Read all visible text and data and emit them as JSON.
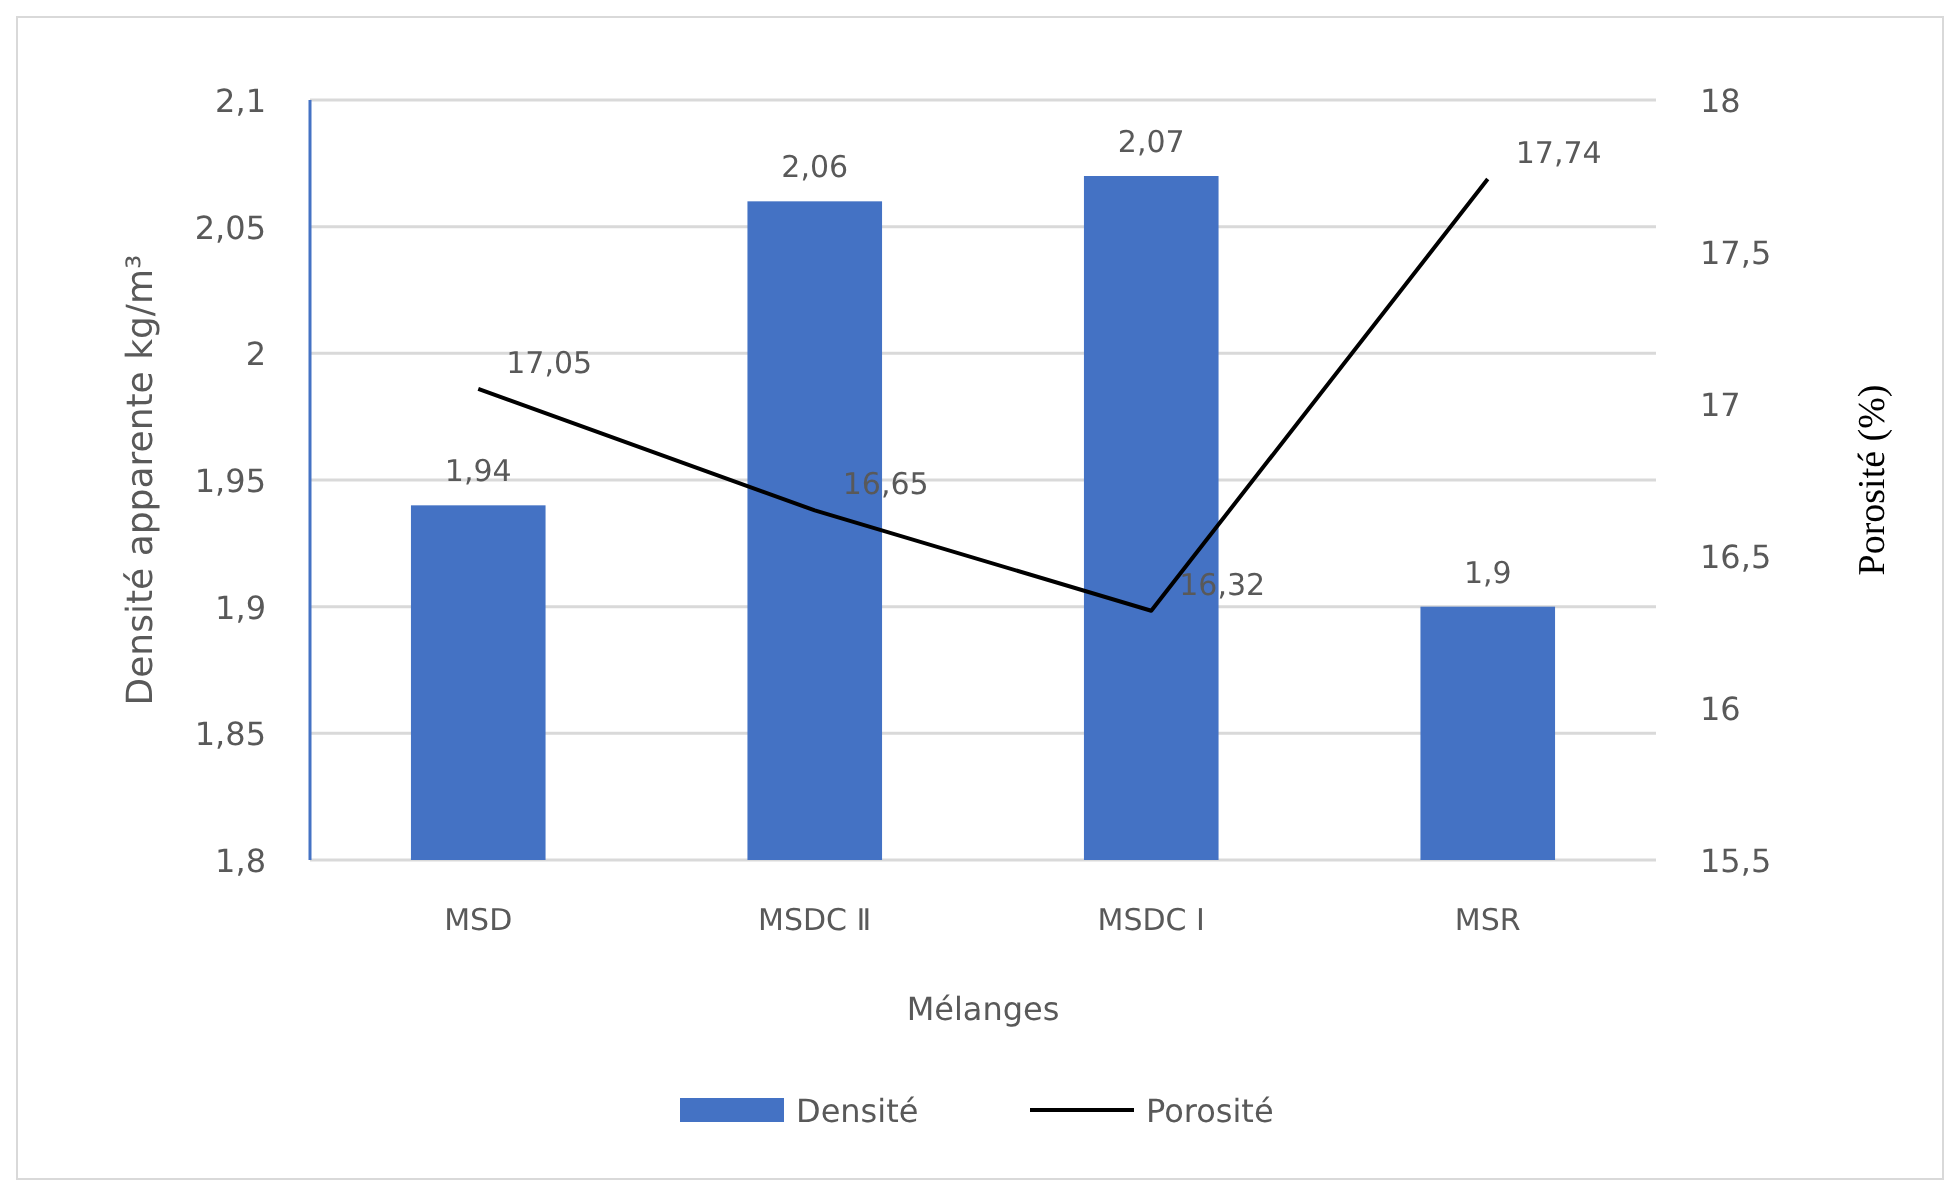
{
  "chart_data": {
    "type": "bar",
    "xlabel": "Mélanges",
    "ylabel": "Densité apparente kg/m³",
    "y2label": "Porosité (%)",
    "categories": [
      "MSD",
      "MSDC Ⅱ",
      "MSDC Ⅰ",
      "MSR"
    ],
    "series": [
      {
        "name": "Densité",
        "color": "#4472c4",
        "values": [
          1.94,
          2.06,
          2.07,
          1.9
        ],
        "value_labels": [
          "1,94",
          "2,06",
          "2,07",
          "1,9"
        ]
      },
      {
        "name": "Porosité",
        "type": "line",
        "axis": "y2",
        "color": "#000000",
        "values": [
          17.05,
          16.65,
          16.32,
          17.74
        ],
        "value_labels": [
          "17,05",
          "16,65",
          "16,32",
          "17,74"
        ]
      }
    ],
    "ylim": [
      1.8,
      2.1
    ],
    "yticks": [
      {
        "value": 1.8,
        "label": "1,8"
      },
      {
        "value": 1.85,
        "label": "1,85"
      },
      {
        "value": 1.9,
        "label": "1,9"
      },
      {
        "value": 1.95,
        "label": "1,95"
      },
      {
        "value": 2,
        "label": "2"
      },
      {
        "value": 2.05,
        "label": "2,05"
      },
      {
        "value": 2.1,
        "label": "2,1"
      }
    ],
    "y2lim": [
      15.5,
      18
    ],
    "y2ticks": [
      {
        "value": 15.5,
        "label": "15,5"
      },
      {
        "value": 16,
        "label": "16"
      },
      {
        "value": 16.5,
        "label": "16,5"
      },
      {
        "value": 17,
        "label": "17"
      },
      {
        "value": 17.5,
        "label": "17,5"
      },
      {
        "value": 18,
        "label": "18"
      }
    ],
    "grid": "y",
    "legend": "bottom",
    "marker": "none",
    "line_style": "solid"
  }
}
